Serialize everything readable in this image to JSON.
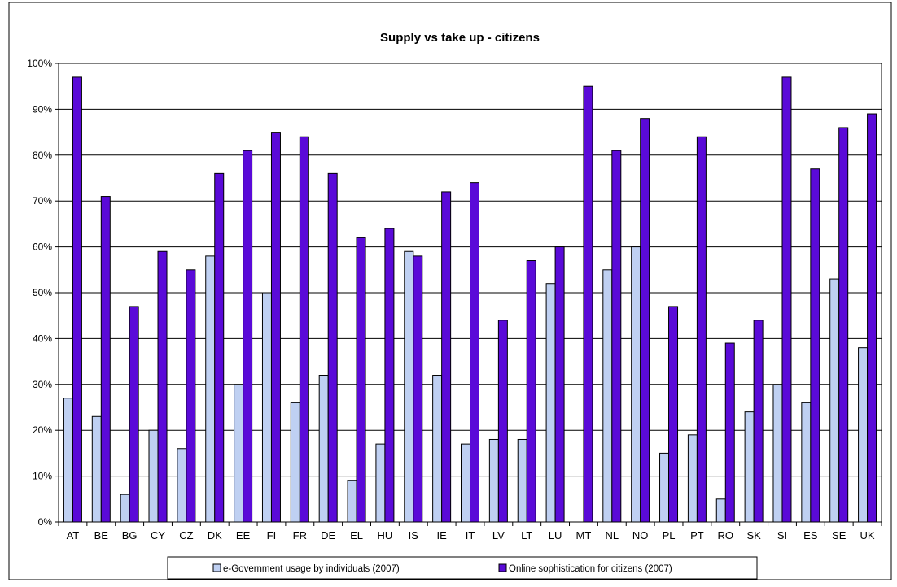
{
  "chart_data": {
    "type": "bar",
    "title": "Supply vs take up - citizens",
    "xlabel": "",
    "ylabel": "",
    "ylim": [
      0,
      100
    ],
    "y_ticks": [
      "0%",
      "10%",
      "20%",
      "30%",
      "40%",
      "50%",
      "60%",
      "70%",
      "80%",
      "90%",
      "100%"
    ],
    "grid": true,
    "legend_position": "bottom",
    "categories": [
      "AT",
      "BE",
      "BG",
      "CY",
      "CZ",
      "DK",
      "EE",
      "FI",
      "FR",
      "DE",
      "EL",
      "HU",
      "IS",
      "IE",
      "IT",
      "LV",
      "LT",
      "LU",
      "MT",
      "NL",
      "NO",
      "PL",
      "PT",
      "RO",
      "SK",
      "SI",
      "ES",
      "SE",
      "UK"
    ],
    "series": [
      {
        "name": "e-Government usage by individuals (2007)",
        "color": "#bfd0f2",
        "values": [
          27,
          23,
          6,
          20,
          16,
          58,
          30,
          50,
          26,
          32,
          9,
          17,
          59,
          32,
          17,
          18,
          18,
          52,
          0,
          55,
          60,
          15,
          19,
          5,
          24,
          30,
          26,
          53,
          38
        ]
      },
      {
        "name": "Online sophistication for citizens (2007)",
        "color": "#5a0ad8",
        "values": [
          97,
          71,
          47,
          59,
          55,
          76,
          81,
          85,
          84,
          76,
          62,
          64,
          58,
          72,
          74,
          44,
          57,
          60,
          95,
          81,
          88,
          47,
          84,
          39,
          44,
          97,
          77,
          86,
          89
        ]
      }
    ]
  }
}
